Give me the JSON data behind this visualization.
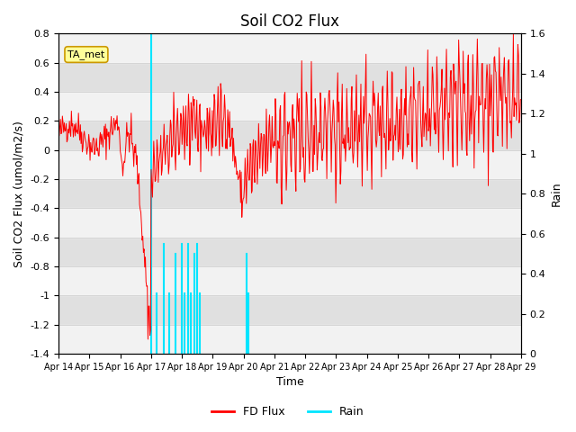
{
  "title": "Soil CO2 Flux",
  "xlabel": "Time",
  "ylabel_left": "Soil CO2 Flux (umol/m2/s)",
  "ylabel_right": "Rain",
  "ylim_left": [
    -1.4,
    0.8
  ],
  "ylim_right": [
    0.0,
    1.6
  ],
  "yticks_left": [
    -1.4,
    -1.2,
    -1.0,
    -0.8,
    -0.6,
    -0.4,
    -0.2,
    0.0,
    0.2,
    0.4,
    0.6,
    0.8
  ],
  "yticks_right": [
    0.0,
    0.2,
    0.4,
    0.6,
    0.8,
    1.0,
    1.2,
    1.4,
    1.6
  ],
  "xtick_labels": [
    "Apr 14",
    "Apr 15",
    "Apr 16",
    "Apr 17",
    "Apr 18",
    "Apr 19",
    "Apr 20",
    "Apr 21",
    "Apr 22",
    "Apr 23",
    "Apr 24",
    "Apr 25",
    "Apr 26",
    "Apr 27",
    "Apr 28",
    "Apr 29"
  ],
  "background_color": "#ffffff",
  "plot_bg_color": "#e0e0e0",
  "band_color": "#ebebeb",
  "flux_color": "#ff0000",
  "rain_color": "#00e5ff",
  "annotation_text": "TA_met",
  "annotation_bg": "#ffff99",
  "legend_labels": [
    "FD Flux",
    "Rain"
  ],
  "n_days": 15,
  "n_per_day": 48,
  "seed": 42,
  "figsize": [
    6.4,
    4.8
  ],
  "dpi": 100
}
